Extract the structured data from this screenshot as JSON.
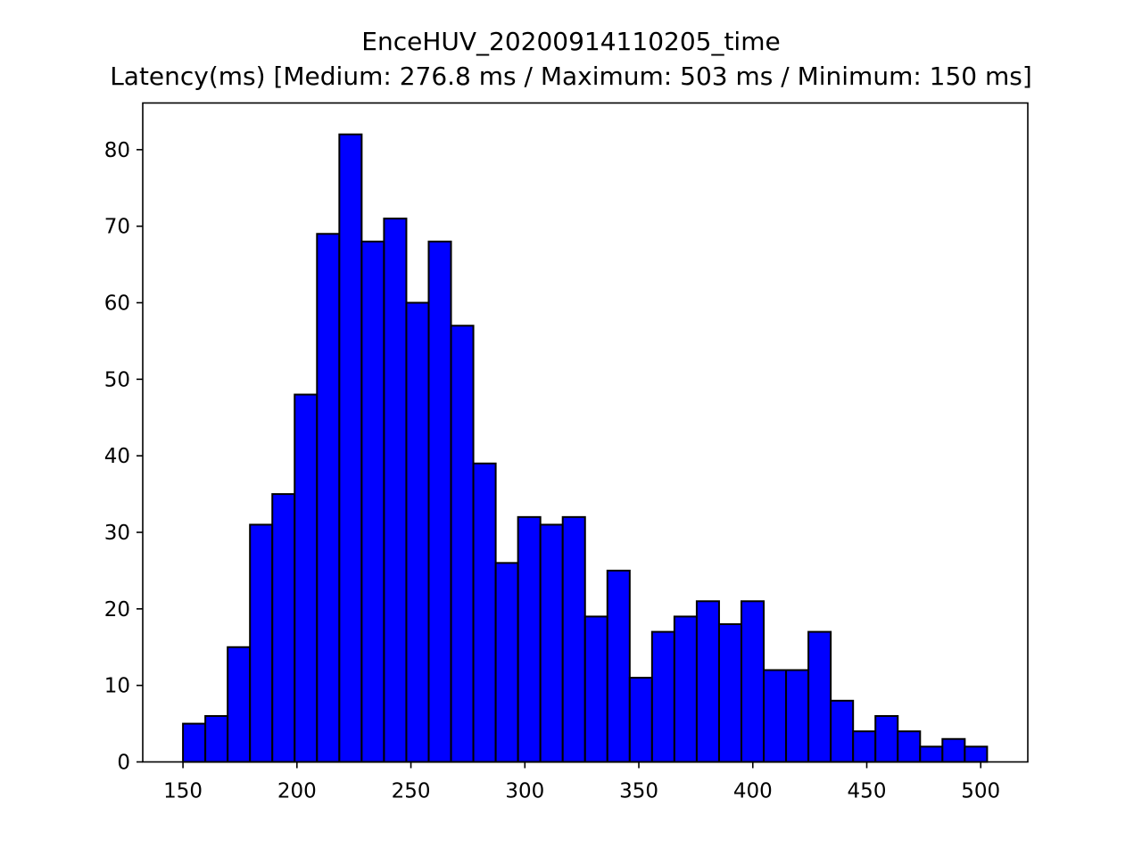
{
  "chart_data": {
    "type": "bar",
    "title": "EnceHUV_20200914110205_time",
    "subtitle": "Latency(ms) [Medium: 276.8 ms / Maximum: 503 ms / Minimum: 150 ms]",
    "xlabel": "",
    "ylabel": "",
    "xlim": [
      132.35,
      520.65
    ],
    "ylim": [
      0,
      86.1
    ],
    "bin_start": 150,
    "bin_width": 9.8,
    "values": [
      5,
      6,
      15,
      31,
      35,
      48,
      69,
      82,
      68,
      71,
      60,
      68,
      57,
      39,
      26,
      32,
      31,
      32,
      19,
      25,
      11,
      17,
      19,
      21,
      18,
      21,
      12,
      12,
      17,
      8,
      4,
      6,
      4,
      2,
      3,
      2
    ],
    "xticks": [
      150,
      200,
      250,
      300,
      350,
      400,
      450,
      500
    ],
    "yticks": [
      0,
      10,
      20,
      30,
      40,
      50,
      60,
      70,
      80
    ],
    "bar_color": "#0000ff",
    "edge_color": "#000000",
    "grid": false,
    "legend": false
  }
}
